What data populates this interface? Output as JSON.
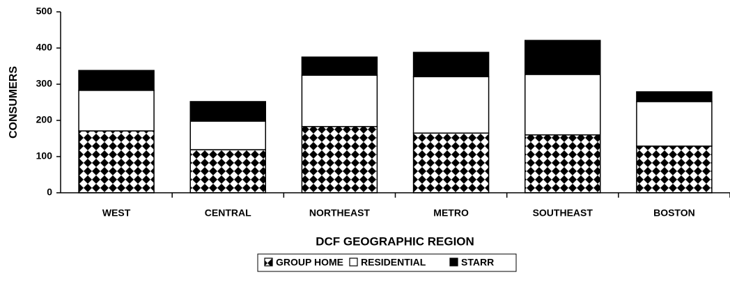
{
  "chart_data": {
    "type": "stacked_bar",
    "x_label": "DCF GEOGRAPHIC REGION",
    "y_label": "CONSUMERS",
    "categories": [
      "WEST",
      "CENTRAL",
      "NORTHEAST",
      "METRO",
      "SOUTHEAST",
      "BOSTON"
    ],
    "series": [
      {
        "name": "GROUP HOME",
        "color": "#000000",
        "pattern": "diamond",
        "values": [
          171,
          119,
          183,
          165,
          160,
          129
        ]
      },
      {
        "name": "RESIDENTIAL",
        "color": "#ffffff",
        "values": [
          112,
          79,
          142,
          156,
          167,
          123
        ]
      },
      {
        "name": "STARR",
        "color": "#000000",
        "values": [
          55,
          54,
          50,
          67,
          94,
          27
        ]
      }
    ],
    "ylim": [
      0,
      500
    ],
    "yticks": [
      0,
      100,
      200,
      300,
      400,
      500
    ],
    "legend": "bottom"
  }
}
